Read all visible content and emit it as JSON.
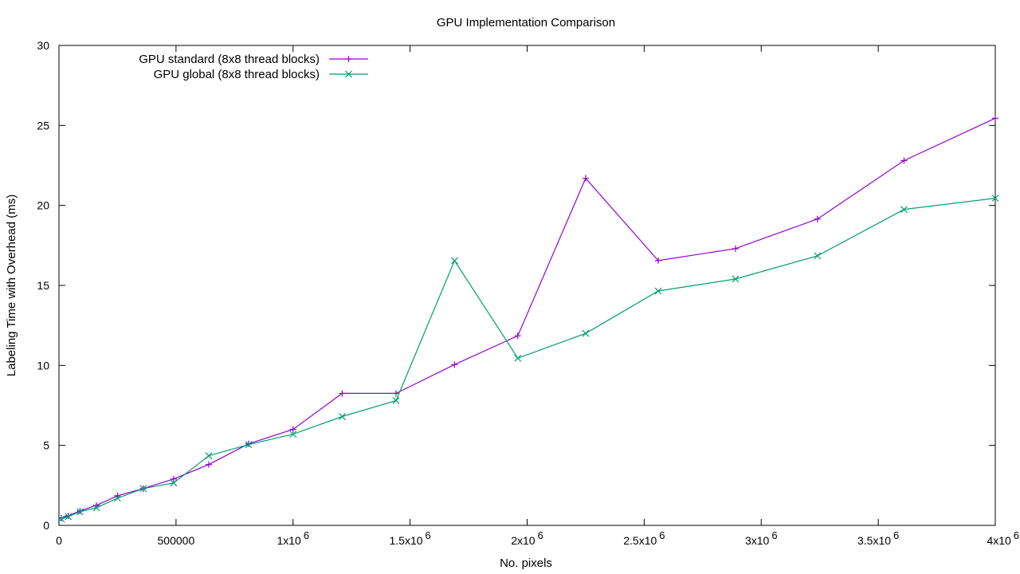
{
  "chart_data": {
    "type": "line",
    "title": "GPU Implementation Comparison",
    "xlabel": "No. pixels",
    "ylabel": "Labeling Time with Overhead (ms)",
    "xlim": [
      0,
      4000000
    ],
    "ylim": [
      0,
      30
    ],
    "grid": false,
    "legend_position": "top-left",
    "x_ticks": [
      {
        "value": 0,
        "label": "0"
      },
      {
        "value": 500000,
        "label": "500000"
      },
      {
        "value": 1000000,
        "label": "1x10",
        "exp": "6"
      },
      {
        "value": 1500000,
        "label": "1.5x10",
        "exp": "6"
      },
      {
        "value": 2000000,
        "label": "2x10",
        "exp": "6"
      },
      {
        "value": 2500000,
        "label": "2.5x10",
        "exp": "6"
      },
      {
        "value": 3000000,
        "label": "3x10",
        "exp": "6"
      },
      {
        "value": 3500000,
        "label": "3.5x10",
        "exp": "6"
      },
      {
        "value": 4000000,
        "label": "4x10",
        "exp": "6"
      }
    ],
    "y_ticks": [
      {
        "value": 0,
        "label": "0"
      },
      {
        "value": 5,
        "label": "5"
      },
      {
        "value": 10,
        "label": "10"
      },
      {
        "value": 15,
        "label": "15"
      },
      {
        "value": 20,
        "label": "20"
      },
      {
        "value": 25,
        "label": "25"
      },
      {
        "value": 30,
        "label": "30"
      }
    ],
    "x": [
      10000,
      40000,
      90000,
      160000,
      250000,
      360000,
      490000,
      640000,
      810000,
      1000000,
      1210000,
      1440000,
      1690000,
      1960000,
      2250000,
      2560000,
      2890000,
      3240000,
      3610000,
      4000000
    ],
    "series": [
      {
        "name": "GPU standard (8x8 thread blocks)",
        "color": "#9400d3",
        "marker": "plus",
        "values": [
          0.45,
          0.6,
          0.9,
          1.25,
          1.85,
          2.3,
          2.9,
          3.8,
          5.1,
          6.0,
          8.25,
          8.25,
          10.05,
          11.85,
          21.7,
          16.55,
          17.3,
          19.15,
          22.8,
          25.45
        ]
      },
      {
        "name": "GPU global (8x8 thread blocks)",
        "color": "#009e73",
        "marker": "x",
        "values": [
          0.4,
          0.55,
          0.85,
          1.1,
          1.7,
          2.3,
          2.65,
          4.35,
          5.05,
          5.7,
          6.8,
          7.8,
          16.55,
          10.45,
          12.0,
          14.65,
          15.4,
          16.85,
          19.75,
          20.45
        ]
      }
    ]
  }
}
